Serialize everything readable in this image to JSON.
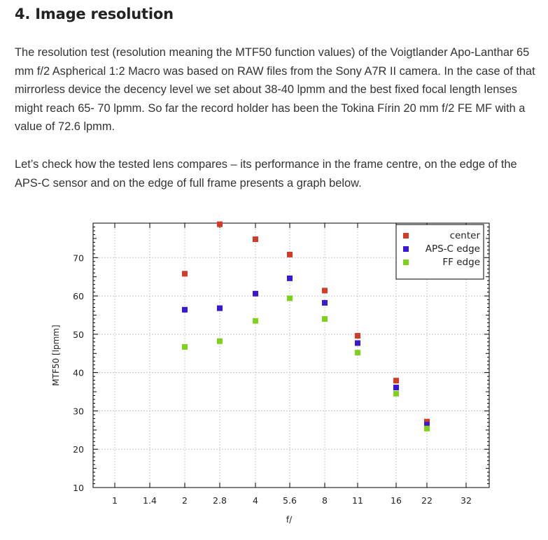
{
  "article": {
    "heading": "4. Image resolution",
    "paragraph_1": "The resolution test (resolution meaning the MTF50 function values) of the Voigtlander Apo-Lanthar 65 mm f/2 Aspherical 1:2 Macro was based on RAW files from the Sony A7R II camera. In the case of that mirrorless device the decency level we set about 38-40 lpmm and the best fixed focal length lenses might reach 65- 70 lpmm. So far the record holder has been the Tokina Fírin 20 mm f/2 FE MF with a value of 72.6 lpmm.",
    "paragraph_2": "Let’s check how the tested lens compares – its performance in the frame centre, on the edge of the APS-C sensor and on the edge of full frame presents a graph below."
  },
  "chart_data": {
    "type": "scatter",
    "title": "",
    "xlabel": "f/",
    "ylabel": "MTF50 [lpmm]",
    "x_scale": "log",
    "x_ticks": [
      "1",
      "1.4",
      "2",
      "2.8",
      "4",
      "5.6",
      "8",
      "11",
      "16",
      "22",
      "32"
    ],
    "y_ticks": [
      "10",
      "20",
      "30",
      "40",
      "50",
      "60",
      "70"
    ],
    "ylim": [
      10,
      79
    ],
    "grid": true,
    "legend_position": "top-right",
    "series": [
      {
        "name": "center",
        "color": "#d23b28",
        "points": [
          {
            "x": "2",
            "y": 65.8
          },
          {
            "x": "2.8",
            "y": 78.7
          },
          {
            "x": "4",
            "y": 74.8
          },
          {
            "x": "5.6",
            "y": 70.8
          },
          {
            "x": "8",
            "y": 61.4
          },
          {
            "x": "11",
            "y": 49.6
          },
          {
            "x": "16",
            "y": 37.9
          },
          {
            "x": "22",
            "y": 27.2
          }
        ]
      },
      {
        "name": "APS-C edge",
        "color": "#3a18d0",
        "points": [
          {
            "x": "2",
            "y": 56.4
          },
          {
            "x": "2.8",
            "y": 56.8
          },
          {
            "x": "4",
            "y": 60.6
          },
          {
            "x": "5.6",
            "y": 64.6
          },
          {
            "x": "8",
            "y": 58.2
          },
          {
            "x": "11",
            "y": 47.7
          },
          {
            "x": "16",
            "y": 36.1
          },
          {
            "x": "22",
            "y": 26.4
          }
        ]
      },
      {
        "name": "FF edge",
        "color": "#7ed21c",
        "points": [
          {
            "x": "2",
            "y": 46.7
          },
          {
            "x": "2.8",
            "y": 48.2
          },
          {
            "x": "4",
            "y": 53.5
          },
          {
            "x": "5.6",
            "y": 59.4
          },
          {
            "x": "8",
            "y": 54.0
          },
          {
            "x": "11",
            "y": 45.2
          },
          {
            "x": "16",
            "y": 34.5
          },
          {
            "x": "22",
            "y": 25.4
          }
        ]
      }
    ]
  }
}
